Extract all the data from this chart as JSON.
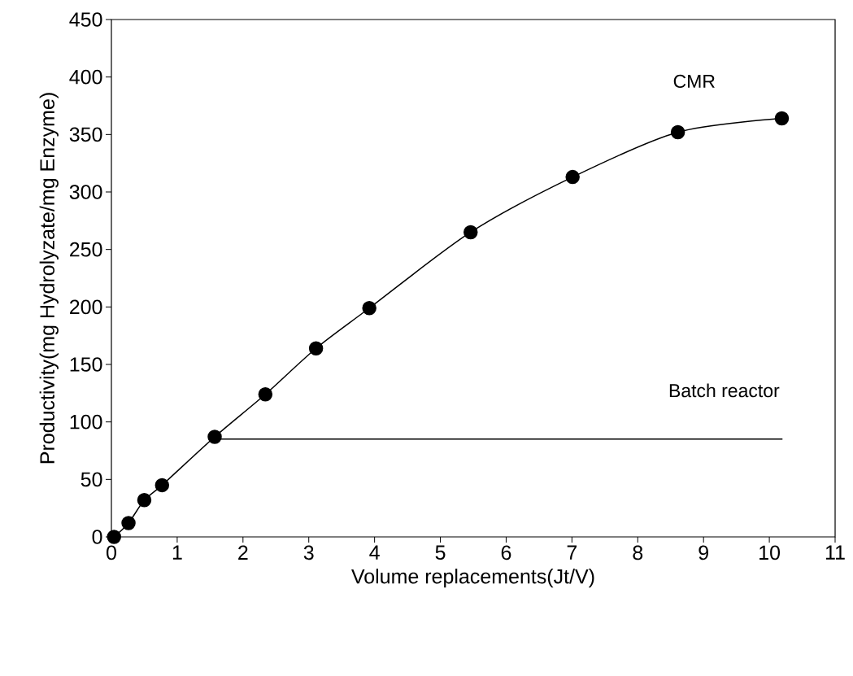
{
  "chart_data": {
    "type": "line",
    "xlabel": "Volume replacements(Jt/V)",
    "ylabel": "Productivity(mg Hydrolyzate/mg Enzyme)",
    "xlim": [
      0,
      11
    ],
    "ylim": [
      0,
      450
    ],
    "xticks": [
      0,
      1,
      2,
      3,
      4,
      5,
      6,
      7,
      8,
      9,
      10,
      11
    ],
    "yticks": [
      0,
      50,
      100,
      150,
      200,
      250,
      300,
      350,
      400,
      450
    ],
    "grid": false,
    "legend": false,
    "series": [
      {
        "name": "CMR",
        "marker": "circle",
        "color": "#000000",
        "x": [
          0.04,
          0.26,
          0.5,
          0.77,
          1.57,
          2.34,
          3.11,
          3.92,
          5.46,
          7.01,
          8.61,
          10.19
        ],
        "values": [
          0,
          12,
          32,
          45,
          87,
          124,
          164,
          199,
          265,
          313,
          352,
          364
        ]
      },
      {
        "name": "Batch reactor",
        "marker": "none",
        "color": "#000000",
        "x": [
          1.57,
          10.2
        ],
        "values": [
          85,
          85
        ]
      }
    ]
  }
}
